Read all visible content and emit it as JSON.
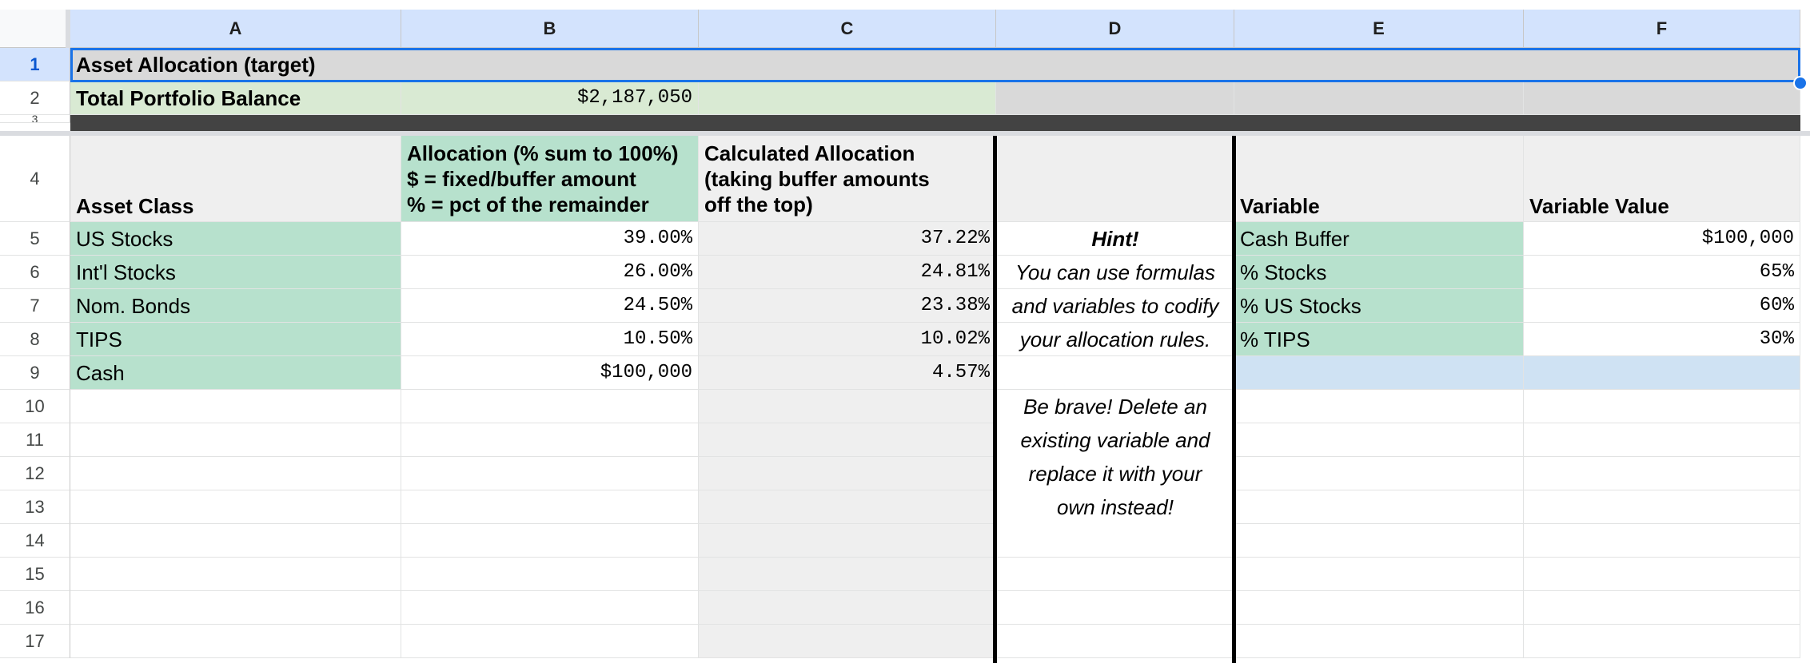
{
  "columns": [
    "A",
    "B",
    "C",
    "D",
    "E",
    "F"
  ],
  "rows": [
    "1",
    "2",
    "3",
    "4",
    "5",
    "6",
    "7",
    "8",
    "9",
    "10",
    "11",
    "12",
    "13",
    "14",
    "15",
    "16",
    "17"
  ],
  "cells": {
    "A1": "Asset Allocation (target)",
    "A2": "Total Portfolio Balance",
    "B2": "$2,187,050",
    "A4": "Asset Class",
    "B4": "Allocation (% sum to 100%)\n$  = fixed/buffer amount\n% = pct of the remainder",
    "C4": "Calculated Allocation\n(taking buffer amounts\noff the top)",
    "E4": "Variable",
    "F4": "Variable Value",
    "A5": "US Stocks",
    "B5": "39.00%",
    "C5": "37.22%",
    "A6": "Int'l Stocks",
    "B6": "26.00%",
    "C6": "24.81%",
    "A7": "Nom. Bonds",
    "B7": "24.50%",
    "C7": "23.38%",
    "A8": "TIPS",
    "B8": "10.50%",
    "C8": "10.02%",
    "A9": "Cash",
    "B9": "$100,000",
    "C9": "4.57%",
    "E5": "Cash Buffer",
    "F5": "$100,000",
    "E6": "% Stocks",
    "F6": "65%",
    "E7": "% US Stocks",
    "F7": "60%",
    "E8": "% TIPS",
    "F8": "30%"
  },
  "hint": {
    "title": "Hint!",
    "body": "You can use formulas\nand variables to codify\nyour allocation rules.",
    "body2": "Be brave! Delete an\nexisting variable and\nreplace it with your\nown instead!"
  },
  "colors": {
    "selection": "#1a73e8",
    "header_selected": "#d3e3fd",
    "green_fill": "#b7e1cd"
  }
}
